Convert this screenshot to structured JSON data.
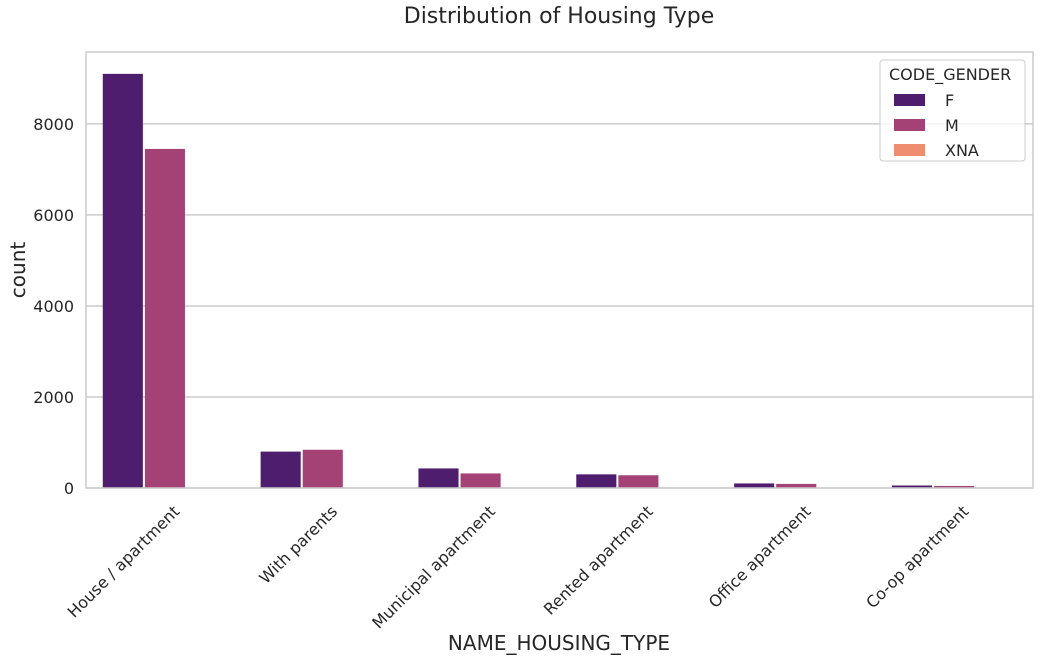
{
  "chart_data": {
    "type": "bar",
    "title": "Distribution of Housing Type",
    "xlabel": "NAME_HOUSING_TYPE",
    "ylabel": "count",
    "categories": [
      "House / apartment",
      "With parents",
      "Municipal apartment",
      "Rented apartment",
      "Office apartment",
      "Co-op apartment"
    ],
    "series": [
      {
        "name": "F",
        "color": "#4f1d6e",
        "values": [
          9100,
          800,
          430,
          300,
          100,
          55
        ]
      },
      {
        "name": "M",
        "color": "#a44275",
        "values": [
          7450,
          840,
          320,
          280,
          90,
          45
        ]
      },
      {
        "name": "XNA",
        "color": "#ee8e6f",
        "values": [
          0,
          0,
          0,
          0,
          0,
          0
        ]
      }
    ],
    "ylim": [
      0,
      9580
    ],
    "yticks": [
      0,
      2000,
      4000,
      6000,
      8000
    ],
    "grid": true,
    "legend": {
      "title": "CODE_GENDER",
      "placement": "top-right"
    }
  }
}
